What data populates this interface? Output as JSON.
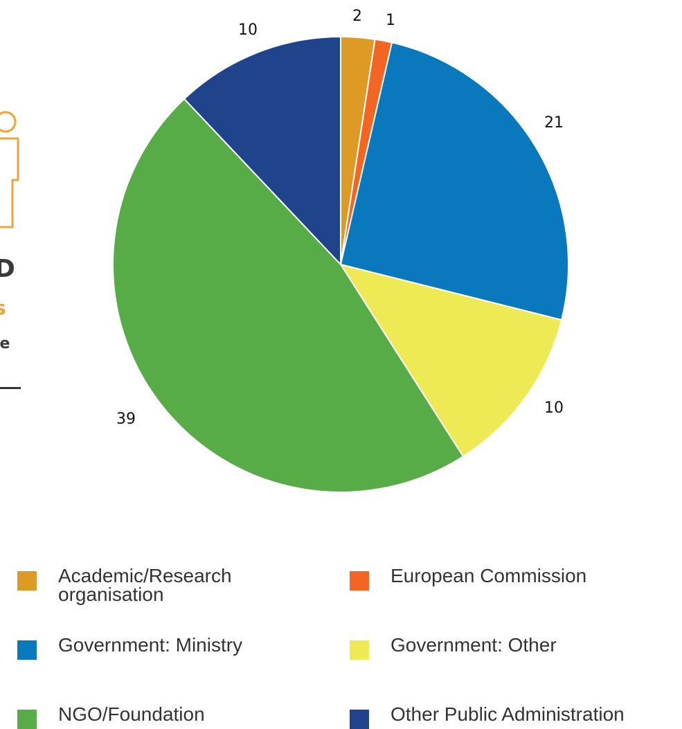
{
  "chart_data": {
    "type": "pie",
    "title": "",
    "categories": [
      "Academic/Research organisation",
      "European Commission",
      "Government: Ministry",
      "Government: Other",
      "NGO/Foundation",
      "Other Public Administration"
    ],
    "values": [
      2,
      1,
      21,
      10,
      39,
      10
    ],
    "colors": [
      "#dd9a25",
      "#f26522",
      "#0a78bd",
      "#eeea55",
      "#57ac47",
      "#1f448b"
    ],
    "start_angle_deg": 0,
    "direction": "clockwise",
    "legend_placement": "bottom"
  },
  "left_fragment": {
    "line1": "D",
    "line2": "s",
    "line3": "le",
    "accent_color": "#f2a23a"
  }
}
